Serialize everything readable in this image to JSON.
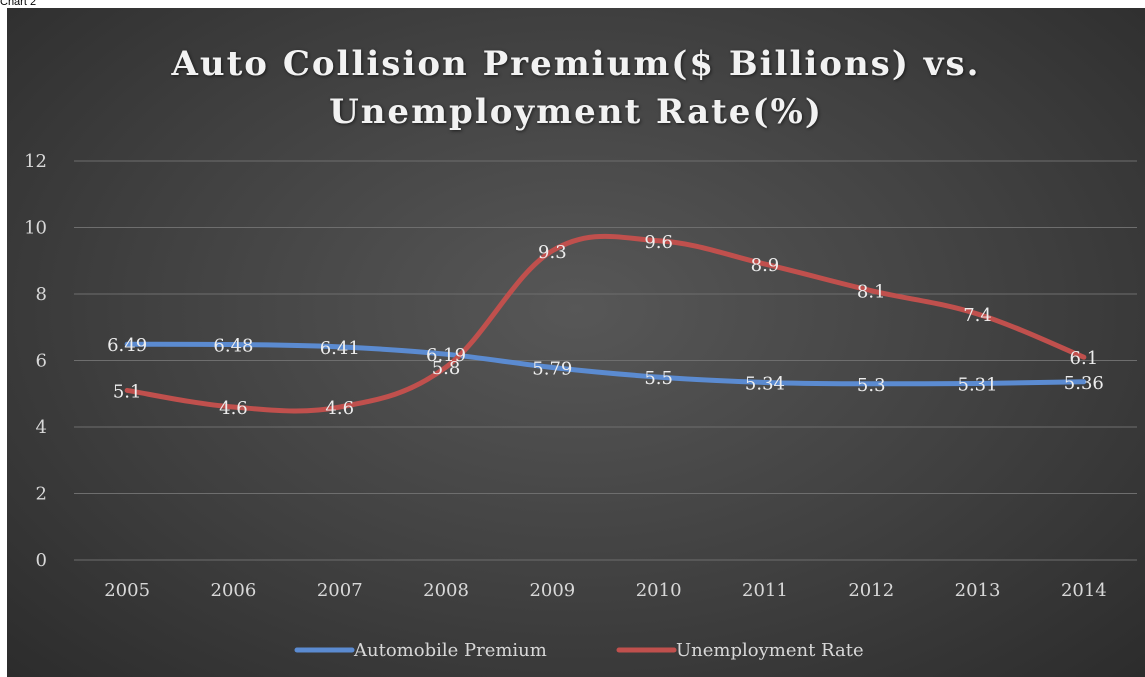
{
  "caption": "Chart 2",
  "colors": {
    "premium": "#5b8bd1",
    "unemployment": "#c0504d"
  },
  "chart_data": {
    "type": "line",
    "title_line1": "Auto Collision Premium($ Billions) vs.",
    "title_line2": "Unemployment Rate(%)",
    "categories": [
      "2005",
      "2006",
      "2007",
      "2008",
      "2009",
      "2010",
      "2011",
      "2012",
      "2013",
      "2014"
    ],
    "series": [
      {
        "name": "Automobile Premium",
        "values": [
          6.49,
          6.48,
          6.41,
          6.19,
          5.79,
          5.5,
          5.34,
          5.3,
          5.31,
          5.36
        ]
      },
      {
        "name": "Unemployment Rate",
        "values": [
          5.1,
          4.6,
          4.6,
          5.8,
          9.3,
          9.6,
          8.9,
          8.1,
          7.4,
          6.1
        ]
      }
    ],
    "ylim": [
      0,
      12
    ],
    "yticks": [
      0,
      2,
      4,
      6,
      8,
      10,
      12
    ],
    "grid": true,
    "legend": "bottom",
    "smooth": true
  }
}
